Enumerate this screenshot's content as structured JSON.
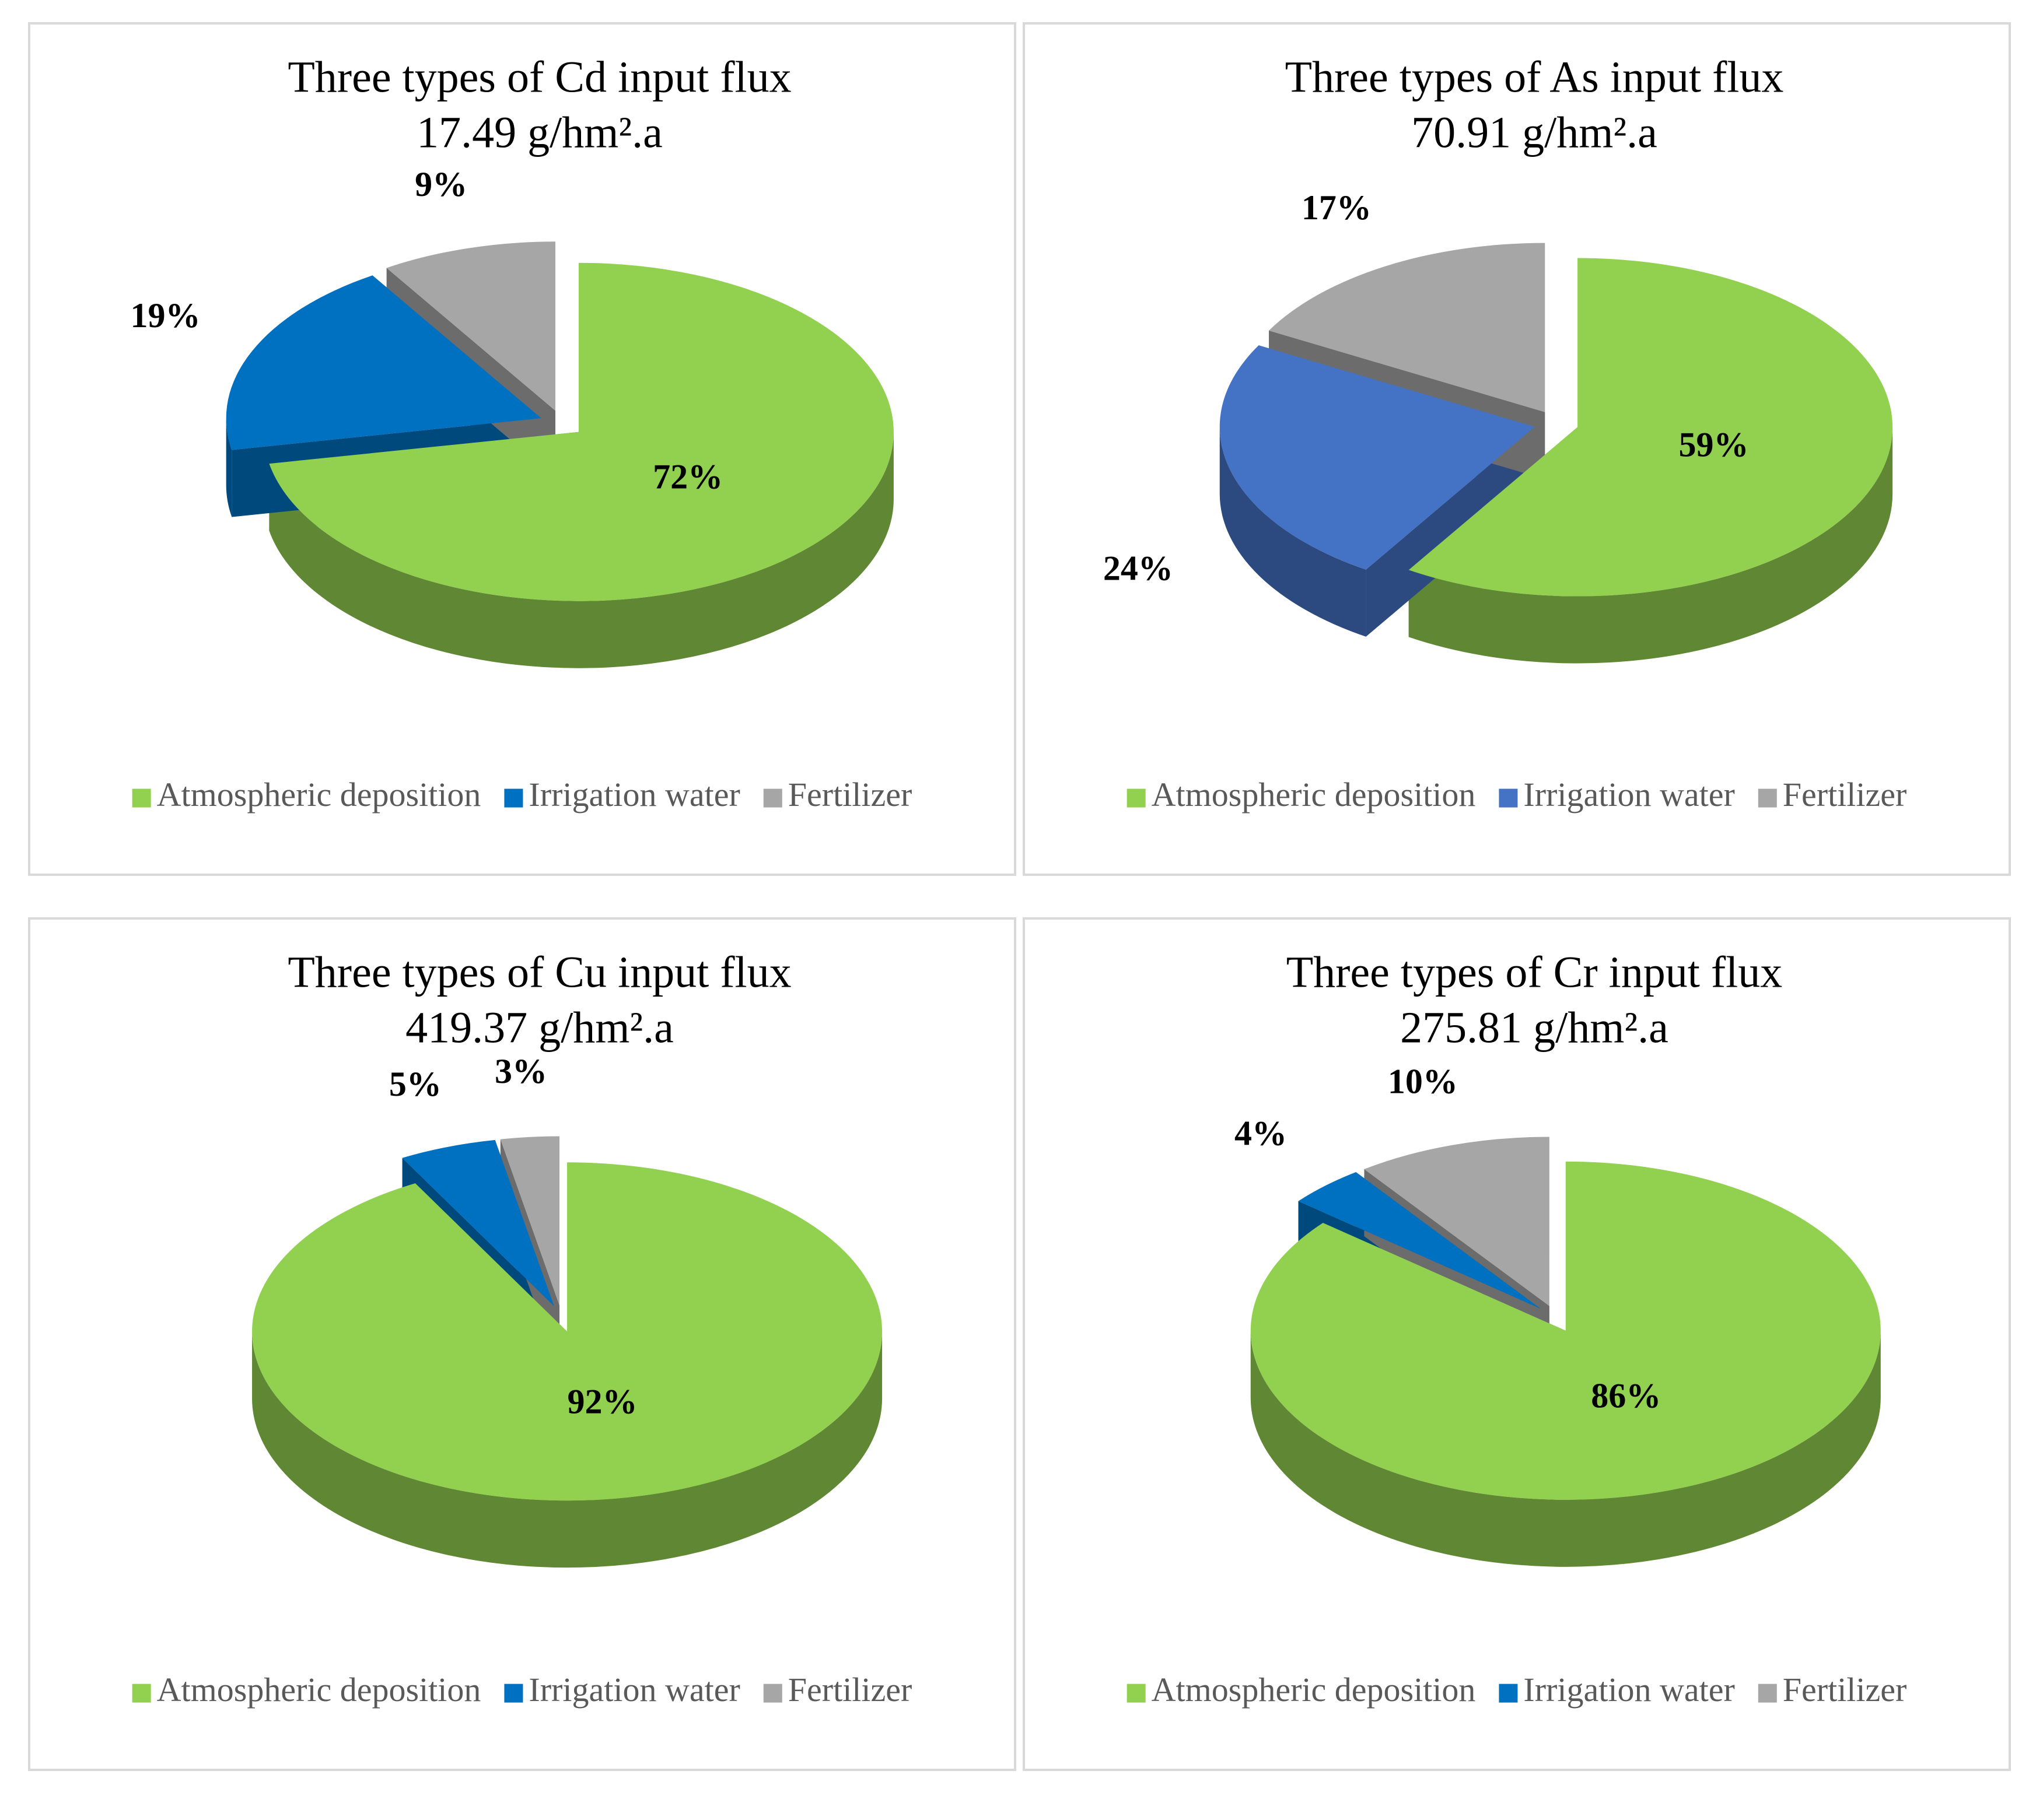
{
  "chart_data": [
    {
      "type": "pie",
      "title": "Three types of Cd input flux",
      "subtitle": "17.49 g/hm².a",
      "categories": [
        "Atmospheric deposition",
        "Irrigation water",
        "Fertilizer"
      ],
      "values": [
        72,
        19,
        9
      ],
      "value_labels": [
        "72%",
        "19%",
        "9%"
      ],
      "colors": [
        "#92d050",
        "#0070c0",
        "#a6a6a6"
      ]
    },
    {
      "type": "pie",
      "title": "Three types of As input flux",
      "subtitle": "70.91 g/hm².a",
      "categories": [
        "Atmospheric deposition",
        "Irrigation water",
        "Fertilizer"
      ],
      "values": [
        59,
        24,
        17
      ],
      "value_labels": [
        "59%",
        "24%",
        "17%"
      ],
      "colors": [
        "#92d050",
        "#4472c4",
        "#a6a6a6"
      ]
    },
    {
      "type": "pie",
      "title": "Three types of Cu input flux",
      "subtitle": "419.37 g/hm².a",
      "categories": [
        "Atmospheric deposition",
        "Irrigation water",
        "Fertilizer"
      ],
      "values": [
        92,
        5,
        3
      ],
      "value_labels": [
        "92%",
        "5%",
        "3%"
      ],
      "colors": [
        "#92d050",
        "#0070c0",
        "#a6a6a6"
      ]
    },
    {
      "type": "pie",
      "title": "Three types of Cr input flux",
      "subtitle": "275.81 g/hm².a",
      "categories": [
        "Atmospheric deposition",
        "Irrigation water",
        "Fertilizer"
      ],
      "values": [
        86,
        4,
        10
      ],
      "value_labels": [
        "86%",
        "4%",
        "10%"
      ],
      "colors": [
        "#92d050",
        "#0070c0",
        "#a6a6a6"
      ]
    }
  ]
}
